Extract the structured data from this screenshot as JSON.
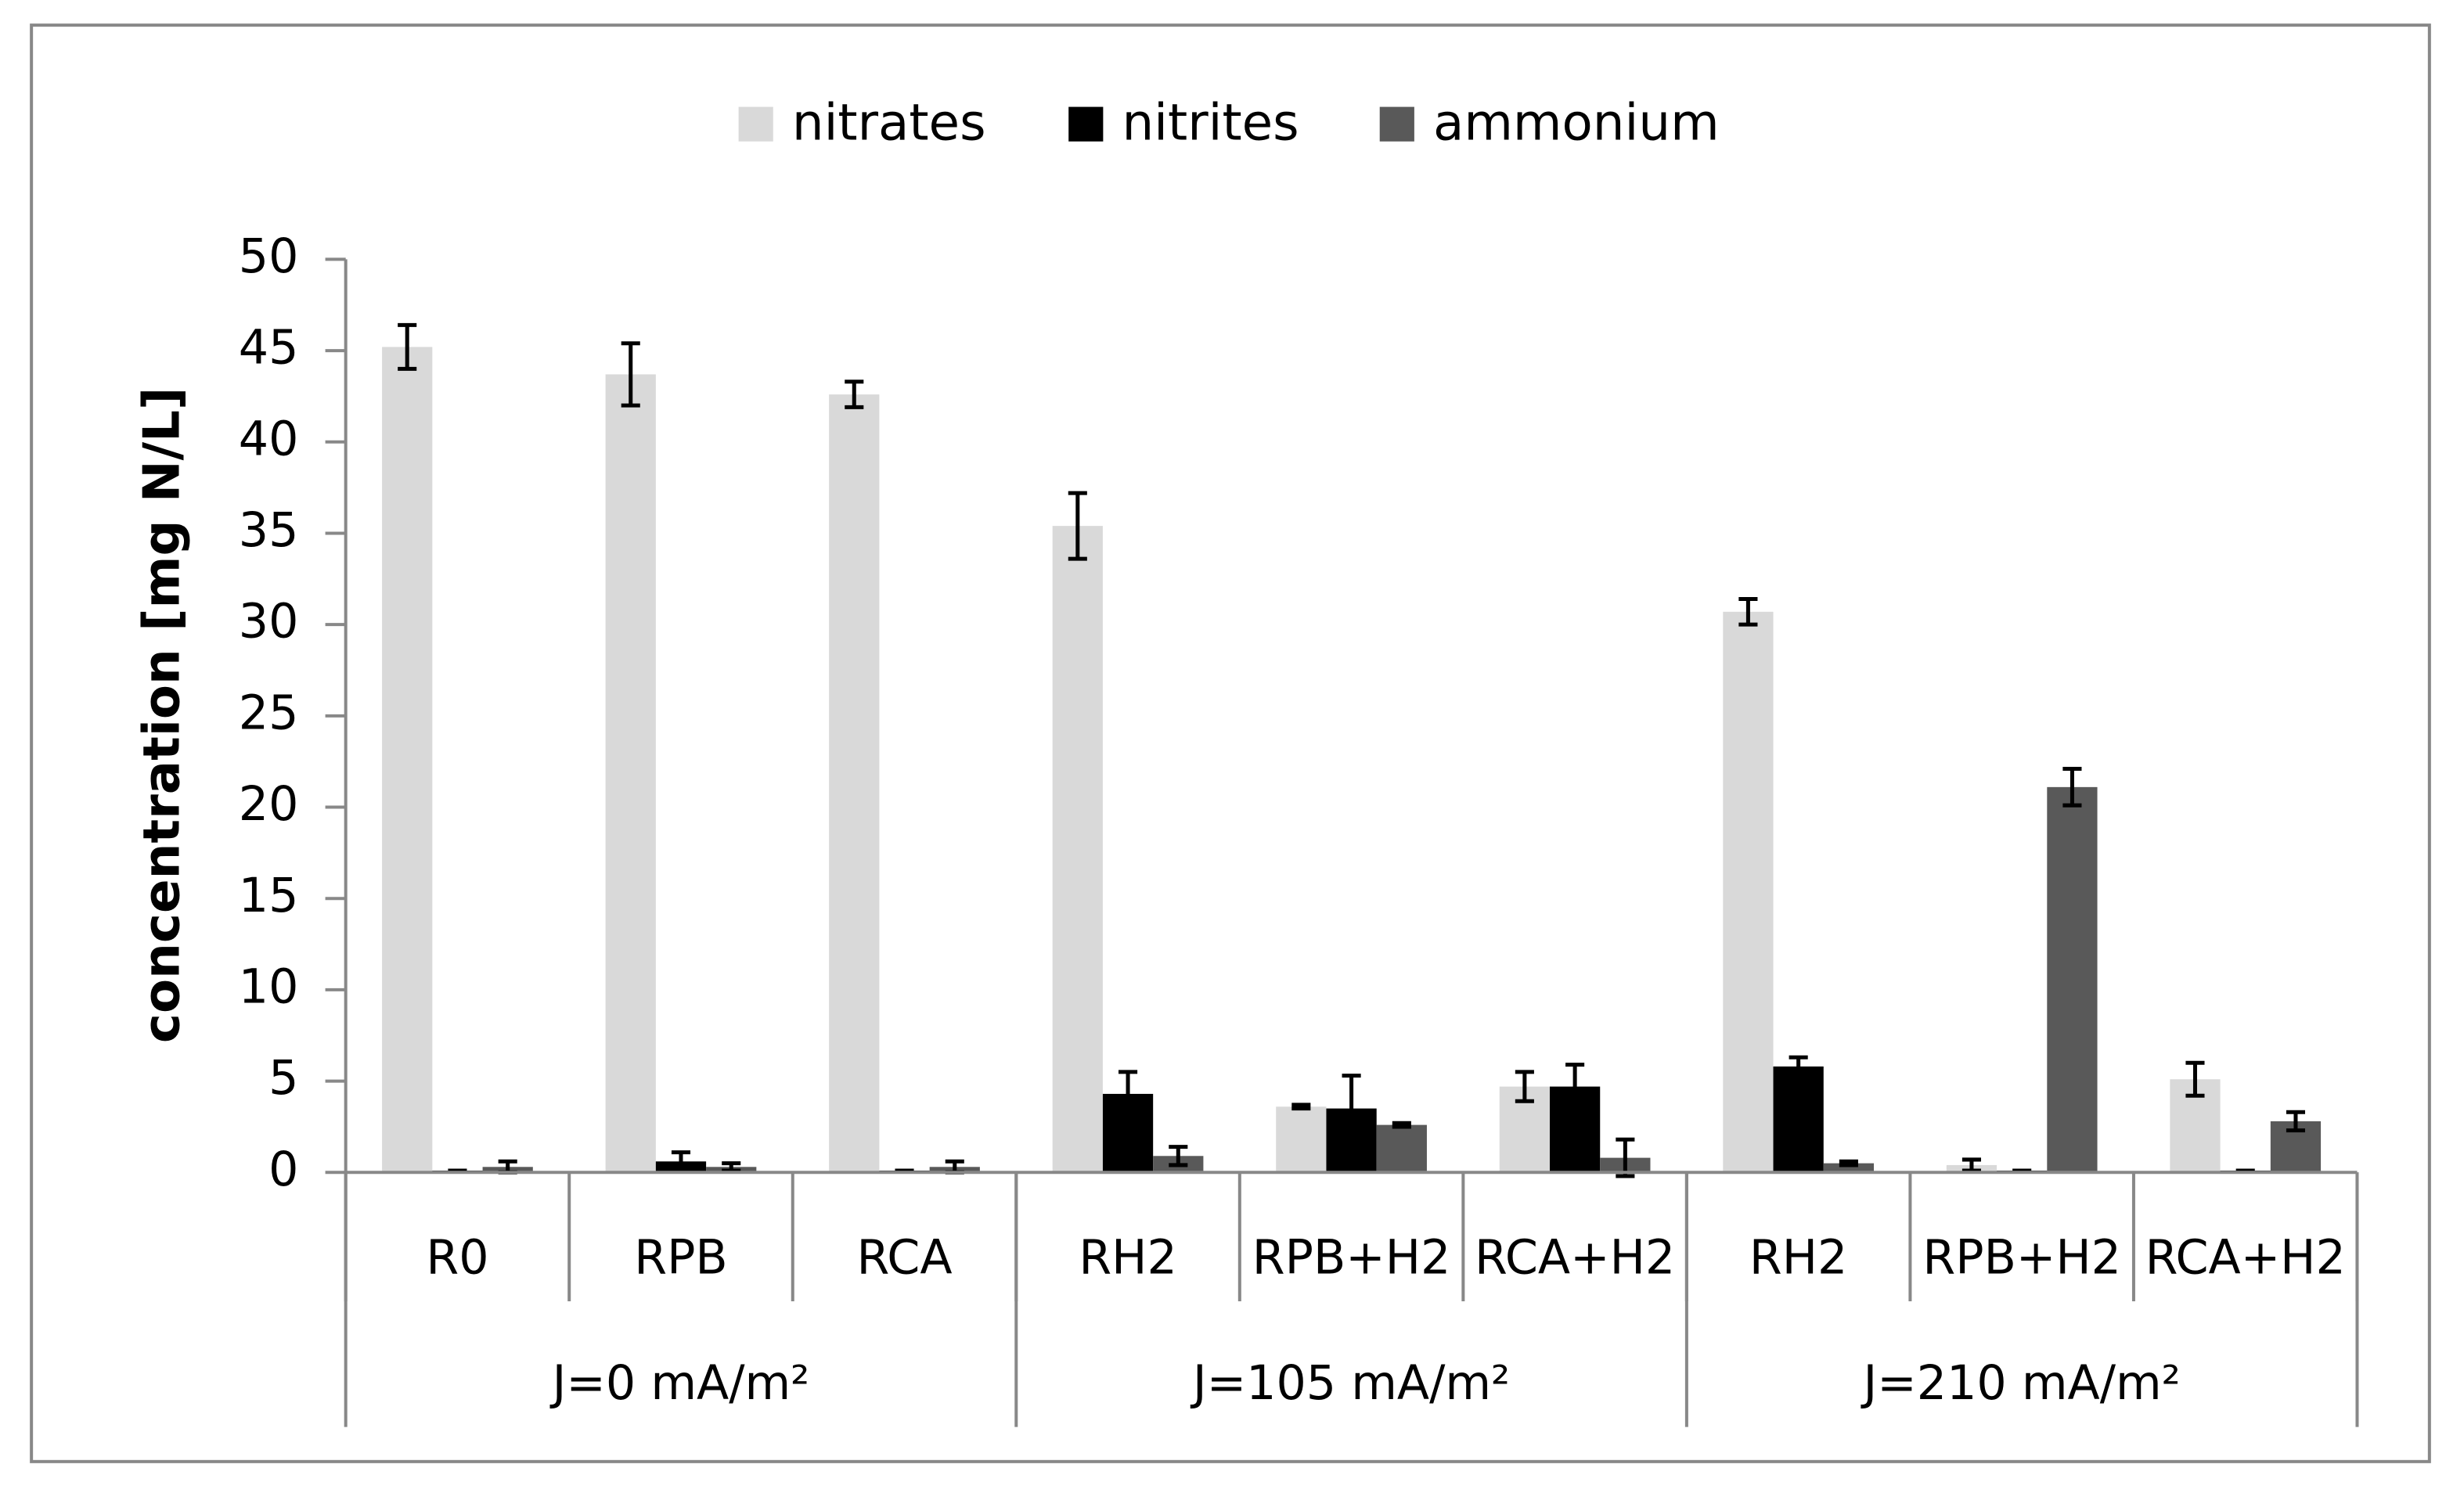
{
  "chart_data": {
    "type": "bar",
    "y_label": "concentration [mg N/L]",
    "categories": [
      "R0",
      "RPB",
      "RCA",
      "RH2",
      "RPB+H2",
      "RCA+H2",
      "RH2",
      "RPB+H2",
      "RCA+H2"
    ],
    "groups": [
      {
        "label": "J=0 mA/m²",
        "size": 3
      },
      {
        "label": "J=105 mA/m²",
        "size": 3
      },
      {
        "label": "J=210 mA/m²",
        "size": 3
      }
    ],
    "series": [
      {
        "name": "nitrates",
        "color": "#d9d9d9",
        "values": [
          45.2,
          43.7,
          42.6,
          35.4,
          3.6,
          4.7,
          30.7,
          0.4,
          5.1
        ],
        "errors": [
          1.2,
          1.7,
          0.7,
          1.8,
          0.1,
          0.8,
          0.7,
          0.3,
          0.9
        ]
      },
      {
        "name": "nitrites",
        "color": "#000000",
        "values": [
          0.1,
          0.6,
          0.1,
          4.3,
          3.5,
          4.7,
          5.8,
          0.1,
          0.1
        ],
        "errors": [
          0,
          0.5,
          0,
          1.2,
          1.8,
          1.2,
          0.5,
          0,
          0
        ]
      },
      {
        "name": "ammonium",
        "color": "#595959",
        "values": [
          0.3,
          0.3,
          0.3,
          0.9,
          2.6,
          0.8,
          0.5,
          21.1,
          2.8
        ],
        "errors": [
          0.3,
          0.2,
          0.3,
          0.5,
          0.1,
          1.0,
          0.1,
          1.0,
          0.5
        ]
      }
    ],
    "ylim": [
      0,
      50
    ],
    "yticks": [
      0,
      5,
      10,
      15,
      20,
      25,
      30,
      35,
      40,
      45,
      50
    ],
    "grid": false,
    "legend": "top"
  }
}
